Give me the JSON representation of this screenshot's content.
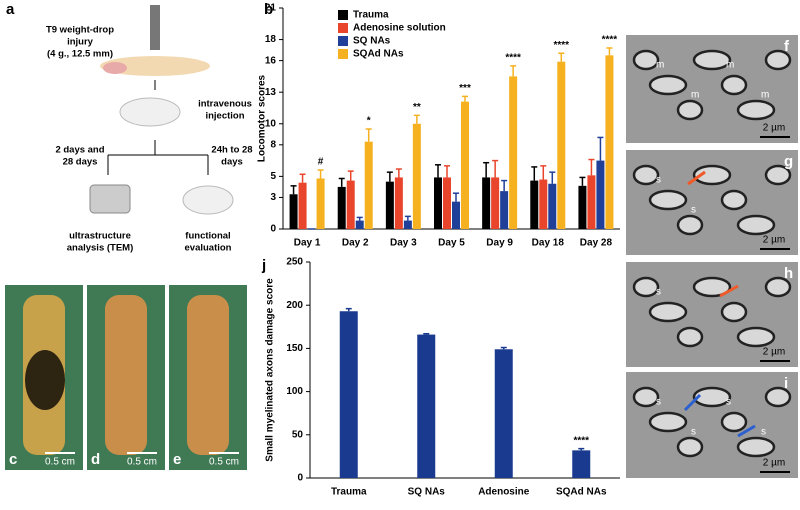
{
  "schematic": {
    "label": "a",
    "injury": [
      "T9 weight-drop",
      "injury",
      "(4 g., 12.5 mm)"
    ],
    "injection": [
      "intravenous",
      "injection"
    ],
    "left_time": [
      "2 days and",
      "28 days"
    ],
    "right_time": [
      "24h to 28",
      "days"
    ],
    "left_outcome": [
      "ultrastructure",
      "analysis (TEM)"
    ],
    "right_outcome": [
      "functional",
      "evaluation"
    ]
  },
  "photos": [
    {
      "label": "c",
      "scale": "0.5 cm"
    },
    {
      "label": "d",
      "scale": "0.5 cm"
    },
    {
      "label": "e",
      "scale": "0.5 cm"
    }
  ],
  "micrographs": [
    {
      "label": "f",
      "scale": "2 µm",
      "marks": [
        "m",
        "m",
        "m",
        "m"
      ]
    },
    {
      "label": "g",
      "scale": "2 µm",
      "marks": [
        "s",
        "s"
      ]
    },
    {
      "label": "h",
      "scale": "2 µm",
      "marks": [
        "s"
      ]
    },
    {
      "label": "i",
      "scale": "2 µm",
      "marks": [
        "s",
        "s",
        "s",
        "s"
      ]
    }
  ],
  "chart_data": [
    {
      "type": "bar",
      "panel": "b",
      "y_label": "Locomotor scores",
      "categories": [
        "Day 1",
        "Day 2",
        "Day 3",
        "Day 5",
        "Day 9",
        "Day 18",
        "Day 28"
      ],
      "series": [
        {
          "name": "Trauma",
          "color": "#000000",
          "values": [
            3.3,
            4.0,
            4.5,
            4.9,
            4.9,
            4.6,
            4.1
          ],
          "errors": [
            0.8,
            0.8,
            0.9,
            1.2,
            1.4,
            1.3,
            0.8
          ]
        },
        {
          "name": "Adenosine solution",
          "color": "#e8452c",
          "values": [
            4.4,
            4.6,
            4.9,
            4.9,
            4.9,
            4.7,
            5.1
          ],
          "errors": [
            0.8,
            0.9,
            0.8,
            1.1,
            1.6,
            1.3,
            1.5
          ]
        },
        {
          "name": "SQ NAs",
          "color": "#1f3f99",
          "values": [
            0,
            0.8,
            0.8,
            2.6,
            3.6,
            4.3,
            6.5
          ],
          "errors": [
            0,
            0.3,
            0.4,
            0.8,
            1.0,
            1.1,
            2.2
          ]
        },
        {
          "name": "SQAd NAs",
          "color": "#f5b11f",
          "values": [
            4.8,
            8.3,
            10.0,
            12.1,
            14.5,
            15.9,
            16.5
          ],
          "errors": [
            0.8,
            1.2,
            0.8,
            0.5,
            1.0,
            0.8,
            0.7
          ]
        }
      ],
      "significance": [
        "#",
        "*",
        "**",
        "***",
        "****",
        "****",
        "****"
      ],
      "ylim": [
        0,
        21
      ],
      "yticks": [
        0,
        3,
        5,
        8,
        10,
        13,
        16,
        18,
        21
      ],
      "legend": "upper-left"
    },
    {
      "type": "bar",
      "panel": "j",
      "y_label": "Small myelinated axons damage score",
      "categories": [
        "Trauma",
        "SQ NAs",
        "Adenosine",
        "SQAd NAs"
      ],
      "values": [
        193,
        166,
        149,
        32
      ],
      "errors": [
        3,
        1,
        2,
        2
      ],
      "color": "#1a3a8f",
      "significance": [
        null,
        null,
        null,
        "****"
      ],
      "ylim": [
        0,
        250
      ],
      "yticks": [
        0,
        50,
        100,
        150,
        200,
        250
      ]
    }
  ]
}
